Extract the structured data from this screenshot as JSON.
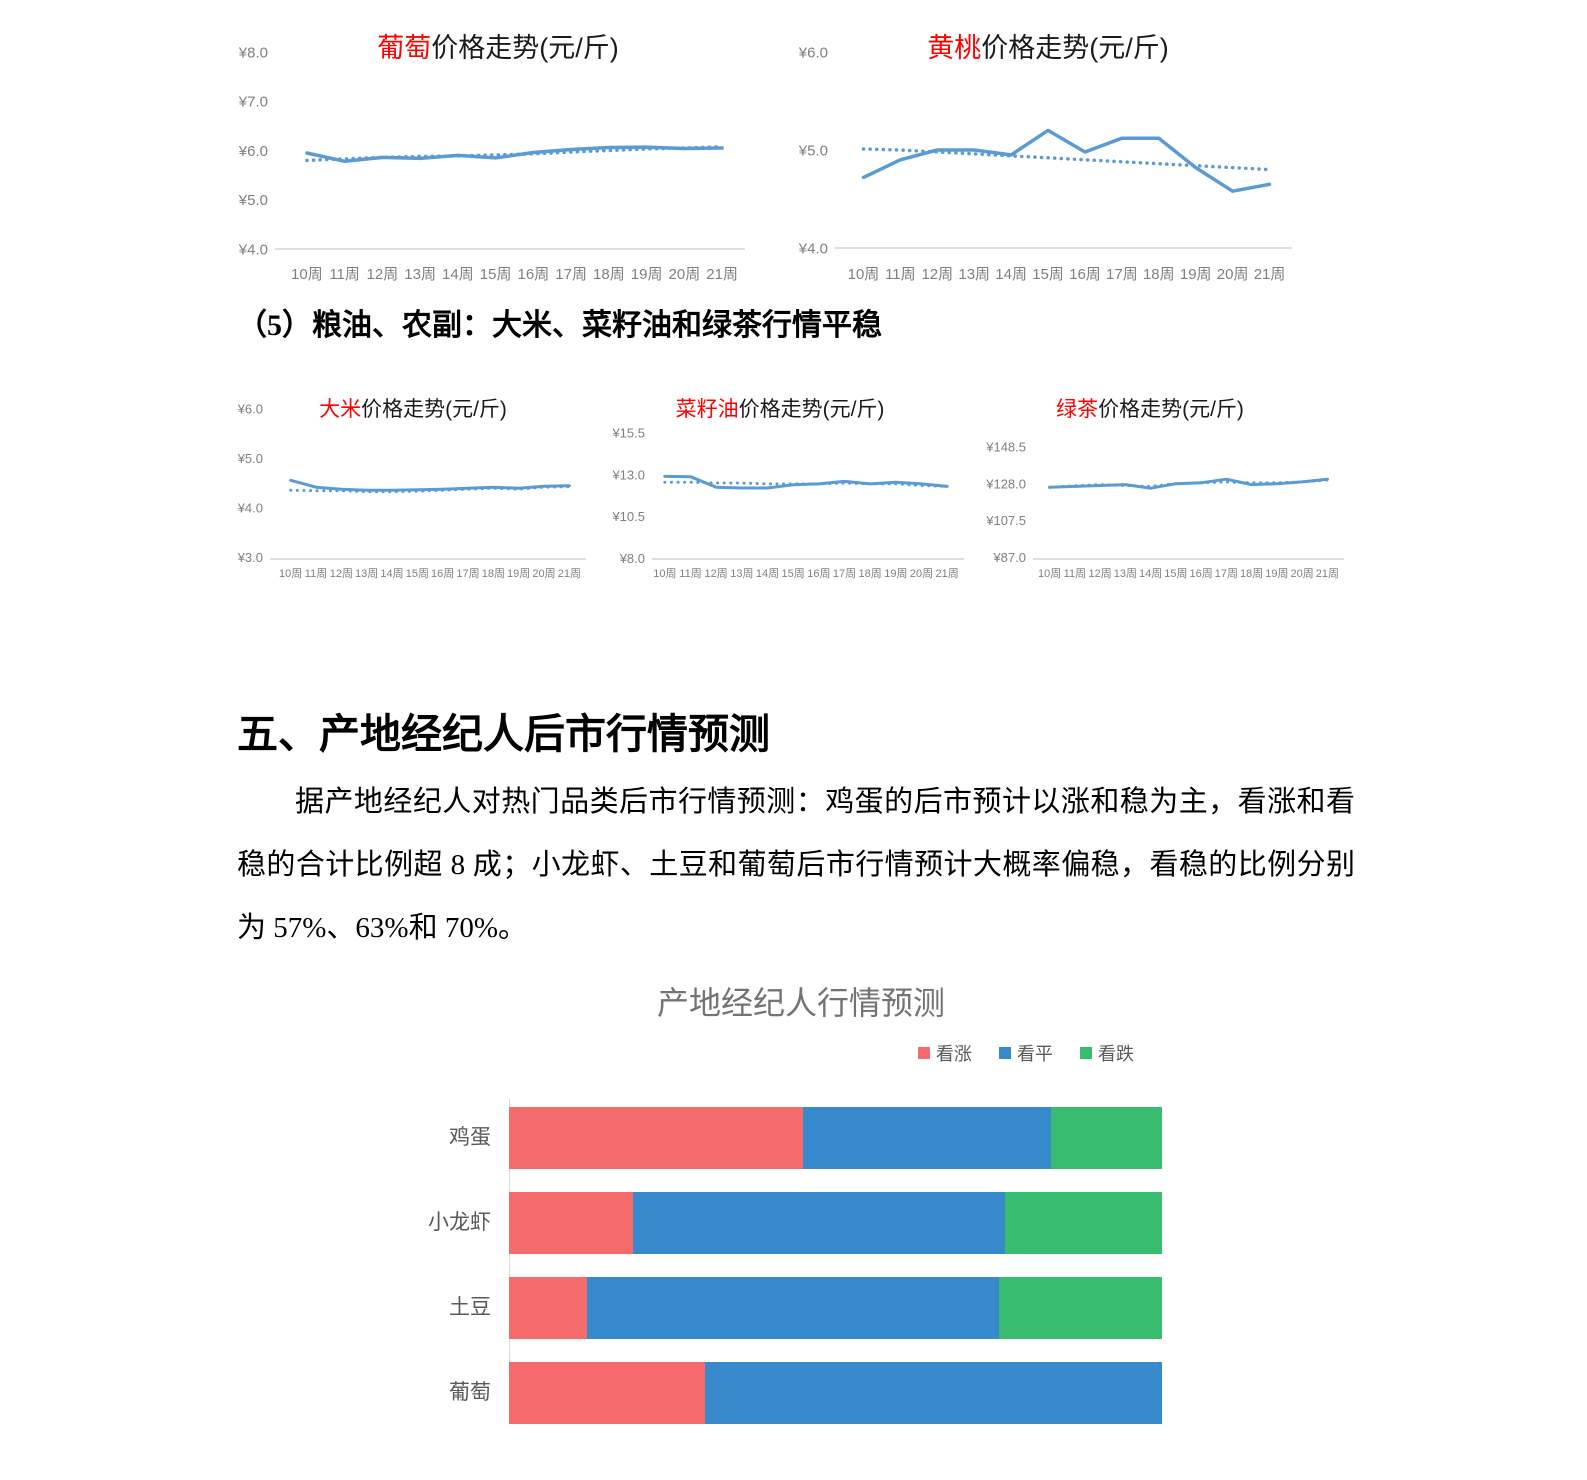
{
  "document": {
    "section5_heading": "（5）粮油、农副：大米、菜籽油和绿茶行情平稳",
    "section_heading": "五、产地经纪人后市行情预测",
    "paragraph": "据产地经纪人对热门品类后市行情预测：鸡蛋的后市预计以涨和稳为主，看涨和看稳的合计比例超 8 成；小龙虾、土豆和葡萄后市行情预计大概率偏稳，看稳的比例分别为 57%、63%和 70%。"
  },
  "colors": {
    "line_blue": "#5B9BD5",
    "axis_text": "#7F7F7F",
    "axis_line": "#BFBFBF",
    "title_highlight": "#FF0000",
    "title_text": "#1A1A1A",
    "bar_title_gray": "#737373",
    "bar_label_gray": "#595959",
    "rise_red": "#F56B6B",
    "flat_blue": "#3689CB",
    "fall_green": "#38BC6F"
  },
  "chart_data": [
    {
      "type": "line",
      "id": "grape-price",
      "title_highlight": "葡萄",
      "title_rest": "价格走势(元/斤)",
      "title_highlight_color": "#FF0000",
      "line_color": "#5B9BD5",
      "ylim": [
        4.0,
        8.0
      ],
      "ytick_labels": [
        "¥8.0",
        "¥7.0",
        "¥6.0",
        "¥5.0",
        "¥4.0"
      ],
      "categories": [
        "10周",
        "11周",
        "12周",
        "13周",
        "14周",
        "15周",
        "16周",
        "17周",
        "18周",
        "19周",
        "20周",
        "21周"
      ],
      "series": [
        {
          "style": "solid",
          "values": [
            5.95,
            5.78,
            5.86,
            5.84,
            5.9,
            5.85,
            5.96,
            6.02,
            6.06,
            6.07,
            6.04,
            6.05
          ]
        },
        {
          "style": "dotted",
          "values": [
            5.8,
            5.83,
            5.86,
            5.88,
            5.89,
            5.91,
            5.93,
            5.97,
            6.0,
            6.03,
            6.05,
            6.08
          ]
        }
      ]
    },
    {
      "type": "line",
      "id": "yellow-peach-price",
      "title_highlight": "黄桃",
      "title_rest": "价格走势(元/斤)",
      "title_highlight_color": "#FF0000",
      "line_color": "#5B9BD5",
      "ylim": [
        4.0,
        6.0
      ],
      "ytick_labels": [
        "¥6.0",
        "¥5.0",
        "¥4.0"
      ],
      "categories": [
        "10周",
        "11周",
        "12周",
        "13周",
        "14周",
        "15周",
        "16周",
        "17周",
        "18周",
        "19周",
        "20周",
        "21周"
      ],
      "series": [
        {
          "style": "solid",
          "values": [
            4.72,
            4.9,
            5.0,
            5.0,
            4.95,
            5.2,
            4.98,
            5.12,
            5.12,
            4.82,
            4.58,
            4.65
          ]
        },
        {
          "style": "dotted",
          "values": [
            5.01,
            5.0,
            4.98,
            4.96,
            4.94,
            4.92,
            4.9,
            4.88,
            4.86,
            4.84,
            4.82,
            4.8
          ]
        }
      ]
    },
    {
      "type": "line",
      "id": "rice-price",
      "title_highlight": "大米",
      "title_rest": "价格走势(元/斤)",
      "title_highlight_color": "#FF0000",
      "line_color": "#5B9BD5",
      "ylim": [
        3.0,
        6.0
      ],
      "ytick_labels": [
        "¥6.0",
        "¥5.0",
        "¥4.0",
        "¥3.0"
      ],
      "categories": [
        "10周",
        "11周",
        "12周",
        "13周",
        "14周",
        "15周",
        "16周",
        "17周",
        "18周",
        "19周",
        "20周",
        "21周"
      ],
      "series": [
        {
          "style": "solid",
          "values": [
            4.56,
            4.42,
            4.38,
            4.36,
            4.36,
            4.37,
            4.38,
            4.4,
            4.42,
            4.4,
            4.44,
            4.45
          ]
        },
        {
          "style": "dotted",
          "values": [
            4.36,
            4.35,
            4.35,
            4.33,
            4.33,
            4.34,
            4.36,
            4.38,
            4.4,
            4.38,
            4.42,
            4.43
          ]
        }
      ]
    },
    {
      "type": "line",
      "id": "rapeseed-oil-price",
      "title_highlight": "菜籽油",
      "title_rest": "价格走势(元/斤)",
      "title_highlight_color": "#FF0000",
      "line_color": "#5B9BD5",
      "ylim": [
        8.0,
        15.5
      ],
      "ytick_labels": [
        "¥15.5",
        "¥13.0",
        "¥10.5",
        "¥8.0"
      ],
      "categories": [
        "10周",
        "11周",
        "12周",
        "13周",
        "14周",
        "15周",
        "16周",
        "17周",
        "18周",
        "19周",
        "20周",
        "21周"
      ],
      "series": [
        {
          "style": "solid",
          "values": [
            12.9,
            12.88,
            12.25,
            12.2,
            12.2,
            12.4,
            12.45,
            12.6,
            12.45,
            12.55,
            12.45,
            12.3
          ]
        },
        {
          "style": "dotted",
          "values": [
            12.55,
            12.55,
            12.5,
            12.5,
            12.45,
            12.45,
            12.45,
            12.5,
            12.45,
            12.45,
            12.35,
            12.3
          ]
        }
      ]
    },
    {
      "type": "line",
      "id": "green-tea-price",
      "title_highlight": "绿茶",
      "title_rest": "价格走势(元/斤)",
      "title_highlight_color": "#FF0000",
      "line_color": "#5B9BD5",
      "ylim": [
        87.0,
        148.5
      ],
      "ytick_labels": [
        "¥148.5",
        "¥128.0",
        "¥107.5",
        "¥87.0"
      ],
      "categories": [
        "10周",
        "11周",
        "12周",
        "13周",
        "14周",
        "15周",
        "16周",
        "17周",
        "18周",
        "19周",
        "20周",
        "21周"
      ],
      "series": [
        {
          "style": "solid",
          "values": [
            126,
            126.5,
            127,
            127.5,
            125.5,
            128,
            128.5,
            130.5,
            127.5,
            128,
            129,
            130.5
          ]
        },
        {
          "style": "dotted",
          "values": [
            126,
            126.8,
            127.5,
            127,
            126.5,
            128,
            128.5,
            129,
            128.5,
            128.5,
            129,
            130
          ]
        }
      ]
    },
    {
      "type": "bar",
      "id": "broker-forecast",
      "orientation": "horizontal-stacked",
      "title": "产地经纪人行情预测",
      "categories": [
        "鸡蛋",
        "小龙虾",
        "土豆",
        "葡萄"
      ],
      "series": [
        {
          "name": "看涨",
          "color": "#F56B6B",
          "values": [
            45,
            19,
            12,
            30
          ]
        },
        {
          "name": "看平",
          "color": "#3689CB",
          "values": [
            38,
            57,
            63,
            70
          ]
        },
        {
          "name": "看跌",
          "color": "#38BC6F",
          "values": [
            17,
            24,
            25,
            0
          ]
        }
      ],
      "xlim": [
        0,
        100
      ]
    }
  ]
}
